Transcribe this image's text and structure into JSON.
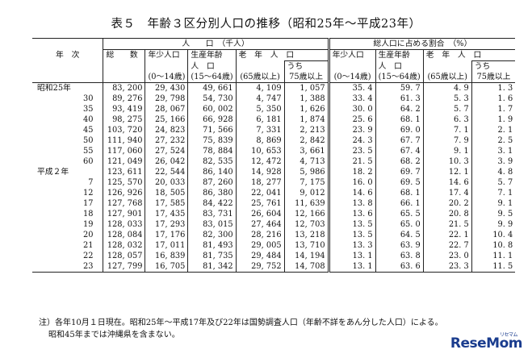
{
  "title": "表５　年齢３区分別人口の推移（昭和25年～平成23年）",
  "header": {
    "year_label": "年　次",
    "population_group": "人　　口　（千人）",
    "ratio_group": "総人口に占める割合　（%）",
    "total": "総　　数",
    "young": "年少人口",
    "young_sub": "(0～14歳)",
    "working_1": "生産年齢",
    "working_2": "人　口",
    "working_sub": "(15～64歳)",
    "elderly": "老　年　人　口",
    "elderly_sub": "(65歳以上)",
    "of_which": "うち",
    "over75": "75歳以上",
    "r_young": "年少人口",
    "r_young_sub": "(0～14歳)",
    "r_working_1": "生産年齢",
    "r_working_2": "人　口",
    "r_working_sub": "(15～64歳)",
    "r_elderly": "老　年　人　口",
    "r_elderly_sub": "(65歳以上)",
    "r_of_which": "うち",
    "r_over75": "75歳以上"
  },
  "rows": [
    {
      "era": "昭和25年",
      "year": "",
      "total": "83, 200",
      "young": "29, 430",
      "working": "49, 661",
      "elderly": "4, 109",
      "over75": "1, 057",
      "r_young": "35. 4",
      "r_working": "59. 7",
      "r_elderly": "4. 9",
      "r_over75": "1. 3"
    },
    {
      "era": "",
      "year": "30",
      "total": "89, 276",
      "young": "29, 798",
      "working": "54, 730",
      "elderly": "4, 747",
      "over75": "1, 388",
      "r_young": "33. 4",
      "r_working": "61. 3",
      "r_elderly": "5. 3",
      "r_over75": "1. 6"
    },
    {
      "era": "",
      "year": "35",
      "total": "93, 419",
      "young": "28, 067",
      "working": "60, 002",
      "elderly": "5, 350",
      "over75": "1, 626",
      "r_young": "30. 0",
      "r_working": "64. 2",
      "r_elderly": "5. 7",
      "r_over75": "1. 7"
    },
    {
      "era": "",
      "year": "40",
      "total": "98, 275",
      "young": "25, 166",
      "working": "66, 928",
      "elderly": "6, 181",
      "over75": "1, 874",
      "r_young": "25. 6",
      "r_working": "68. 1",
      "r_elderly": "6. 3",
      "r_over75": "1. 9"
    },
    {
      "era": "",
      "year": "45",
      "total": "103, 720",
      "young": "24, 823",
      "working": "71, 566",
      "elderly": "7, 331",
      "over75": "2, 213",
      "r_young": "23. 9",
      "r_working": "69. 0",
      "r_elderly": "7. 1",
      "r_over75": "2. 1"
    },
    {
      "era": "",
      "year": "50",
      "total": "111, 940",
      "young": "27, 232",
      "working": "75, 839",
      "elderly": "8, 869",
      "over75": "2, 842",
      "r_young": "24. 3",
      "r_working": "67. 7",
      "r_elderly": "7. 9",
      "r_over75": "2. 5"
    },
    {
      "era": "",
      "year": "55",
      "total": "117, 060",
      "young": "27, 524",
      "working": "78, 884",
      "elderly": "10, 653",
      "over75": "3, 661",
      "r_young": "23. 5",
      "r_working": "67. 4",
      "r_elderly": "9. 1",
      "r_over75": "3. 1"
    },
    {
      "era": "",
      "year": "60",
      "total": "121, 049",
      "young": "26, 042",
      "working": "82, 535",
      "elderly": "12, 472",
      "over75": "4, 713",
      "r_young": "21. 5",
      "r_working": "68. 2",
      "r_elderly": "10. 3",
      "r_over75": "3. 9"
    },
    {
      "era": "平成２年",
      "year": "",
      "total": "123, 611",
      "young": "22, 544",
      "working": "86, 140",
      "elderly": "14, 928",
      "over75": "5, 986",
      "r_young": "18. 2",
      "r_working": "69. 7",
      "r_elderly": "12. 1",
      "r_over75": "4. 8"
    },
    {
      "era": "",
      "year": "7",
      "total": "125, 570",
      "young": "20, 033",
      "working": "87, 260",
      "elderly": "18, 277",
      "over75": "7, 175",
      "r_young": "16. 0",
      "r_working": "69. 5",
      "r_elderly": "14. 6",
      "r_over75": "5. 7"
    },
    {
      "era": "",
      "year": "12",
      "total": "126, 926",
      "young": "18, 505",
      "working": "86, 380",
      "elderly": "22, 041",
      "over75": "9, 012",
      "r_young": "14. 6",
      "r_working": "68. 1",
      "r_elderly": "17. 4",
      "r_over75": "7. 1"
    },
    {
      "era": "",
      "year": "17",
      "total": "127, 768",
      "young": "17, 585",
      "working": "84, 422",
      "elderly": "25, 761",
      "over75": "11, 639",
      "r_young": "13. 8",
      "r_working": "66. 1",
      "r_elderly": "20. 2",
      "r_over75": "9. 1"
    },
    {
      "era": "",
      "year": "18",
      "total": "127, 901",
      "young": "17, 435",
      "working": "83, 731",
      "elderly": "26, 604",
      "over75": "12, 166",
      "r_young": "13. 6",
      "r_working": "65. 5",
      "r_elderly": "20. 8",
      "r_over75": "9. 5"
    },
    {
      "era": "",
      "year": "19",
      "total": "128, 033",
      "young": "17, 293",
      "working": "83, 015",
      "elderly": "27, 464",
      "over75": "12, 703",
      "r_young": "13. 5",
      "r_working": "65. 0",
      "r_elderly": "21. 5",
      "r_over75": "9. 9"
    },
    {
      "era": "",
      "year": "20",
      "total": "128, 084",
      "young": "17, 176",
      "working": "82, 300",
      "elderly": "28, 216",
      "over75": "13, 218",
      "r_young": "13. 5",
      "r_working": "64. 5",
      "r_elderly": "22. 1",
      "r_over75": "10. 4"
    },
    {
      "era": "",
      "year": "21",
      "total": "128, 032",
      "young": "17, 011",
      "working": "81, 493",
      "elderly": "29, 005",
      "over75": "13, 710",
      "r_young": "13. 3",
      "r_working": "63. 9",
      "r_elderly": "22. 7",
      "r_over75": "10. 8"
    },
    {
      "era": "",
      "year": "22",
      "total": "128, 057",
      "young": "16, 839",
      "working": "81, 735",
      "elderly": "29, 484",
      "over75": "14, 194",
      "r_young": "13. 1",
      "r_working": "63. 8",
      "r_elderly": "23. 0",
      "r_over75": "11. 1"
    },
    {
      "era": "",
      "year": "23",
      "total": "127, 799",
      "young": "16, 705",
      "working": "81, 342",
      "elderly": "29, 752",
      "over75": "14, 708",
      "r_young": "13. 1",
      "r_working": "63. 6",
      "r_elderly": "23. 3",
      "r_over75": "11. 5"
    }
  ],
  "notes": {
    "line1": "注）各年10月１日現在。昭和25年～平成17年及び22年は国勢調査人口（年齢不詳をあん分した人口）による。",
    "line2": "昭和45年までは沖縄県を含まない。"
  },
  "logo": {
    "text": "ReseMom",
    "small": "リセマム"
  }
}
